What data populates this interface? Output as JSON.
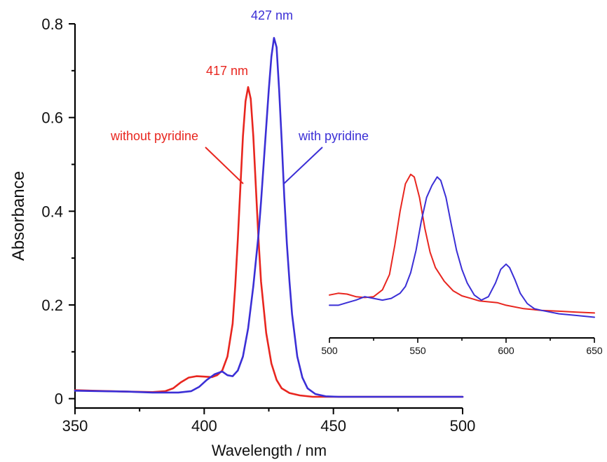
{
  "chart_data": [
    {
      "type": "line",
      "xlabel": "Wavelength / nm",
      "ylabel": "Absorbance",
      "xlim": [
        350,
        500
      ],
      "ylim": [
        -0.02,
        0.8
      ],
      "xticks": [
        350,
        400,
        450,
        500
      ],
      "yticks": [
        0,
        0.2,
        0.4,
        0.6,
        0.8
      ],
      "xtick_labels": [
        "350",
        "400",
        "450",
        "500"
      ],
      "ytick_labels": [
        "0",
        "0.2",
        "0.4",
        "0.6",
        "0.8"
      ],
      "grid": false,
      "series": [
        {
          "name": "without pyridine",
          "color": "#e8261f",
          "x": [
            350,
            370,
            380,
            385,
            388,
            391,
            394,
            397,
            400,
            403,
            405,
            407,
            409,
            411,
            412,
            413,
            414,
            415,
            416,
            417,
            418,
            419,
            420,
            421,
            422,
            424,
            426,
            428,
            430,
            433,
            437,
            442,
            450,
            470,
            500
          ],
          "y": [
            0.018,
            0.015,
            0.014,
            0.016,
            0.022,
            0.035,
            0.045,
            0.048,
            0.047,
            0.046,
            0.05,
            0.06,
            0.09,
            0.16,
            0.24,
            0.34,
            0.45,
            0.56,
            0.635,
            0.665,
            0.64,
            0.56,
            0.45,
            0.34,
            0.25,
            0.14,
            0.075,
            0.04,
            0.022,
            0.012,
            0.007,
            0.004,
            0.004,
            0.004,
            0.004
          ]
        },
        {
          "name": "with pyridine",
          "color": "#3b2fd6",
          "x": [
            350,
            370,
            380,
            390,
            395,
            398,
            401,
            404,
            407,
            409,
            411,
            413,
            415,
            417,
            419,
            421,
            422,
            423,
            424,
            425,
            426,
            427,
            428,
            429,
            430,
            431,
            432,
            433,
            434,
            436,
            438,
            440,
            443,
            447,
            452,
            460,
            480,
            500
          ],
          "y": [
            0.017,
            0.015,
            0.013,
            0.013,
            0.016,
            0.025,
            0.04,
            0.052,
            0.058,
            0.05,
            0.048,
            0.06,
            0.09,
            0.15,
            0.24,
            0.35,
            0.42,
            0.5,
            0.58,
            0.66,
            0.73,
            0.77,
            0.75,
            0.66,
            0.55,
            0.43,
            0.33,
            0.25,
            0.18,
            0.09,
            0.045,
            0.022,
            0.01,
            0.005,
            0.004,
            0.004,
            0.004,
            0.004
          ]
        }
      ],
      "annotations": [
        {
          "text": "417 nm",
          "color": "#e8261f"
        },
        {
          "text": "427 nm",
          "color": "#3b2fd6"
        },
        {
          "text": "without pyridine",
          "color": "#e8261f"
        },
        {
          "text": "with pyridine",
          "color": "#3b2fd6"
        }
      ]
    },
    {
      "type": "line",
      "inset": true,
      "xlim": [
        500,
        650
      ],
      "xticks": [
        500,
        550,
        600,
        650
      ],
      "xtick_labels": [
        "500",
        "550",
        "600",
        "650"
      ],
      "ylim": [
        0,
        1
      ],
      "yaxis_visible": false,
      "series": [
        {
          "name": "without pyridine",
          "color": "#e8261f",
          "x": [
            500,
            505,
            510,
            515,
            520,
            525,
            530,
            534,
            537,
            540,
            543,
            546,
            548,
            551,
            554,
            557,
            560,
            565,
            570,
            575,
            580,
            585,
            590,
            595,
            600,
            610,
            620,
            630,
            640,
            650
          ],
          "y": [
            0.21,
            0.22,
            0.215,
            0.2,
            0.195,
            0.2,
            0.24,
            0.33,
            0.5,
            0.7,
            0.86,
            0.915,
            0.9,
            0.78,
            0.6,
            0.46,
            0.37,
            0.29,
            0.235,
            0.205,
            0.19,
            0.175,
            0.17,
            0.165,
            0.15,
            0.13,
            0.12,
            0.115,
            0.11,
            0.105
          ]
        },
        {
          "name": "with pyridine",
          "color": "#3b2fd6",
          "x": [
            500,
            505,
            510,
            515,
            520,
            525,
            530,
            535,
            540,
            543,
            546,
            549,
            552,
            555,
            558,
            561,
            563,
            566,
            569,
            572,
            575,
            578,
            582,
            586,
            590,
            594,
            597,
            600,
            602,
            605,
            608,
            612,
            616,
            620,
            625,
            630,
            640,
            650
          ],
          "y": [
            0.15,
            0.15,
            0.165,
            0.18,
            0.2,
            0.19,
            0.18,
            0.19,
            0.22,
            0.26,
            0.34,
            0.47,
            0.64,
            0.78,
            0.85,
            0.9,
            0.88,
            0.78,
            0.62,
            0.47,
            0.36,
            0.28,
            0.21,
            0.18,
            0.2,
            0.28,
            0.36,
            0.39,
            0.37,
            0.3,
            0.22,
            0.16,
            0.13,
            0.12,
            0.11,
            0.1,
            0.09,
            0.08
          ]
        }
      ]
    }
  ]
}
